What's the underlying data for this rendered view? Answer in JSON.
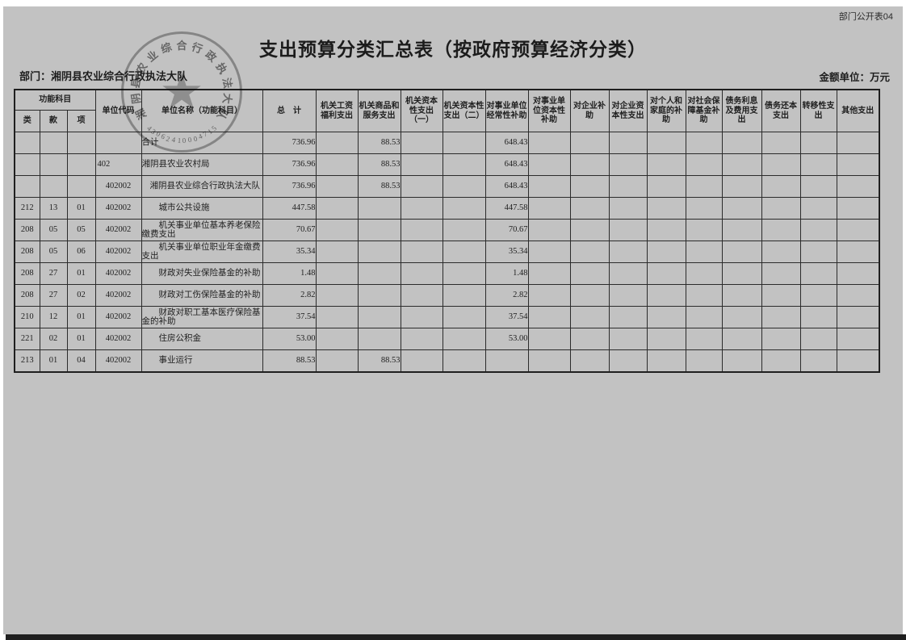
{
  "page": {
    "doc_code": "部门公开表04",
    "title": "支出预算分类汇总表（按政府预算经济分类）",
    "department_label": "部门：湘阴县农业综合行政执法大队",
    "unit_label": "金额单位：万元"
  },
  "stamp": {
    "name": "湘阴县农业综合行政执法大队",
    "number": "43062410004715",
    "star": "★"
  },
  "table": {
    "header": {
      "func_group": "功能科目",
      "func_class": "类",
      "func_section": "款",
      "func_item": "项",
      "unit_code": "单位代码",
      "unit_name": "单位名称（功能科目）",
      "total": "总　计",
      "cols": [
        "机关工资福利支出",
        "机关商品和服务支出",
        "机关资本性支出（一）",
        "机关资本性支出（二）",
        "对事业单位经常性补助",
        "对事业单位资本性补助",
        "对企业补助",
        "对企业资本性支出",
        "对个人和家庭的补助",
        "对社会保障基金补助",
        "债务利息及费用支出",
        "债务还本支出",
        "转移性支出",
        "其他支出"
      ]
    },
    "rows": [
      {
        "cls": "",
        "sec": "",
        "item": "",
        "code": "",
        "name": "合计",
        "total": "736.96",
        "c1": "",
        "c2": "88.53",
        "c3": "",
        "c4": "",
        "c5": "648.43",
        "c6": "",
        "c7": "",
        "c8": "",
        "c9": "",
        "c10": "",
        "c11": "",
        "c12": "",
        "c13": "",
        "c14": ""
      },
      {
        "cls": "",
        "sec": "",
        "item": "",
        "code": "402",
        "name": "湘阴县农业农村局",
        "total": "736.96",
        "c1": "",
        "c2": "88.53",
        "c3": "",
        "c4": "",
        "c5": "648.43",
        "c6": "",
        "c7": "",
        "c8": "",
        "c9": "",
        "c10": "",
        "c11": "",
        "c12": "",
        "c13": "",
        "c14": ""
      },
      {
        "cls": "",
        "sec": "",
        "item": "",
        "code": "402002",
        "name": "湘阴县农业综合行政执法大队",
        "total": "736.96",
        "c1": "",
        "c2": "88.53",
        "c3": "",
        "c4": "",
        "c5": "648.43",
        "c6": "",
        "c7": "",
        "c8": "",
        "c9": "",
        "c10": "",
        "c11": "",
        "c12": "",
        "c13": "",
        "c14": ""
      },
      {
        "cls": "212",
        "sec": "13",
        "item": "01",
        "code": "402002",
        "name": "城市公共设施",
        "total": "447.58",
        "c1": "",
        "c2": "",
        "c3": "",
        "c4": "",
        "c5": "447.58",
        "c6": "",
        "c7": "",
        "c8": "",
        "c9": "",
        "c10": "",
        "c11": "",
        "c12": "",
        "c13": "",
        "c14": ""
      },
      {
        "cls": "208",
        "sec": "05",
        "item": "05",
        "code": "402002",
        "name": "机关事业单位基本养老保险缴费支出",
        "total": "70.67",
        "c1": "",
        "c2": "",
        "c3": "",
        "c4": "",
        "c5": "70.67",
        "c6": "",
        "c7": "",
        "c8": "",
        "c9": "",
        "c10": "",
        "c11": "",
        "c12": "",
        "c13": "",
        "c14": ""
      },
      {
        "cls": "208",
        "sec": "05",
        "item": "06",
        "code": "402002",
        "name": "机关事业单位职业年金缴费支出",
        "total": "35.34",
        "c1": "",
        "c2": "",
        "c3": "",
        "c4": "",
        "c5": "35.34",
        "c6": "",
        "c7": "",
        "c8": "",
        "c9": "",
        "c10": "",
        "c11": "",
        "c12": "",
        "c13": "",
        "c14": ""
      },
      {
        "cls": "208",
        "sec": "27",
        "item": "01",
        "code": "402002",
        "name": "财政对失业保险基金的补助",
        "total": "1.48",
        "c1": "",
        "c2": "",
        "c3": "",
        "c4": "",
        "c5": "1.48",
        "c6": "",
        "c7": "",
        "c8": "",
        "c9": "",
        "c10": "",
        "c11": "",
        "c12": "",
        "c13": "",
        "c14": ""
      },
      {
        "cls": "208",
        "sec": "27",
        "item": "02",
        "code": "402002",
        "name": "财政对工伤保险基金的补助",
        "total": "2.82",
        "c1": "",
        "c2": "",
        "c3": "",
        "c4": "",
        "c5": "2.82",
        "c6": "",
        "c7": "",
        "c8": "",
        "c9": "",
        "c10": "",
        "c11": "",
        "c12": "",
        "c13": "",
        "c14": ""
      },
      {
        "cls": "210",
        "sec": "12",
        "item": "01",
        "code": "402002",
        "name": "财政对职工基本医疗保险基金的补助",
        "total": "37.54",
        "c1": "",
        "c2": "",
        "c3": "",
        "c4": "",
        "c5": "37.54",
        "c6": "",
        "c7": "",
        "c8": "",
        "c9": "",
        "c10": "",
        "c11": "",
        "c12": "",
        "c13": "",
        "c14": ""
      },
      {
        "cls": "221",
        "sec": "02",
        "item": "01",
        "code": "402002",
        "name": "住房公积金",
        "total": "53.00",
        "c1": "",
        "c2": "",
        "c3": "",
        "c4": "",
        "c5": "53.00",
        "c6": "",
        "c7": "",
        "c8": "",
        "c9": "",
        "c10": "",
        "c11": "",
        "c12": "",
        "c13": "",
        "c14": ""
      },
      {
        "cls": "213",
        "sec": "01",
        "item": "04",
        "code": "402002",
        "name": "事业运行",
        "total": "88.53",
        "c1": "",
        "c2": "88.53",
        "c3": "",
        "c4": "",
        "c5": "",
        "c6": "",
        "c7": "",
        "c8": "",
        "c9": "",
        "c10": "",
        "c11": "",
        "c12": "",
        "c13": "",
        "c14": ""
      }
    ]
  }
}
